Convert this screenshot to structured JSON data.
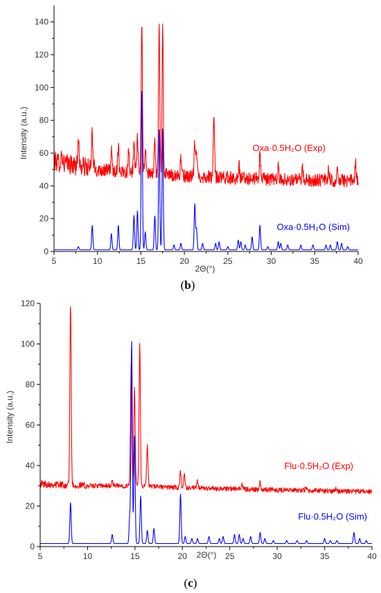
{
  "chart_data": [
    {
      "type": "line",
      "panel_label": "(b)",
      "panel_letter": "b",
      "xlabel": "2Θ(°)",
      "ylabel": "Intensity (a.u.)",
      "xlim": [
        5,
        40
      ],
      "ylim": [
        0,
        150
      ],
      "xticks": [
        5,
        10,
        15,
        20,
        25,
        30,
        35,
        40
      ],
      "yticks": [
        0,
        20,
        40,
        60,
        80,
        100,
        120,
        140
      ],
      "grid": false,
      "series": [
        {
          "name": "Oxa·0.5H₂O (Exp)",
          "color": "#ff0000",
          "baseline": [
            [
              5,
              55
            ],
            [
              10,
              50
            ],
            [
              20,
              46
            ],
            [
              30,
              44
            ],
            [
              40,
              43
            ]
          ],
          "noise": 5,
          "peaks": [
            [
              5.9,
              60
            ],
            [
              7.8,
              70
            ],
            [
              9.4,
              73
            ],
            [
              11.6,
              61
            ],
            [
              12.4,
              65
            ],
            [
              13.6,
              63
            ],
            [
              14.2,
              66
            ],
            [
              14.6,
              70
            ],
            [
              15.1,
              142
            ],
            [
              15.5,
              64
            ],
            [
              16.6,
              68
            ],
            [
              17.1,
              140
            ],
            [
              17.5,
              138
            ],
            [
              19.6,
              57
            ],
            [
              21.2,
              66
            ],
            [
              21.4,
              62
            ],
            [
              23.4,
              83
            ],
            [
              26.3,
              52
            ],
            [
              28.7,
              60
            ],
            [
              30.8,
              51
            ],
            [
              33.6,
              50
            ],
            [
              36.6,
              50
            ],
            [
              37.6,
              50
            ],
            [
              39.7,
              54
            ]
          ]
        },
        {
          "name": "Oxa·0.5H₂O (Sim)",
          "color": "#0000ff",
          "baseline": [
            [
              5,
              1
            ],
            [
              40,
              1
            ]
          ],
          "noise": 0,
          "peaks": [
            [
              7.8,
              3
            ],
            [
              9.4,
              16
            ],
            [
              11.6,
              11
            ],
            [
              12.4,
              16
            ],
            [
              14.2,
              22
            ],
            [
              14.6,
              25
            ],
            [
              15.1,
              100
            ],
            [
              15.5,
              12
            ],
            [
              16.6,
              22
            ],
            [
              17.1,
              75
            ],
            [
              17.5,
              75
            ],
            [
              18.8,
              4
            ],
            [
              19.6,
              5
            ],
            [
              21.2,
              29
            ],
            [
              21.4,
              14
            ],
            [
              22.1,
              5
            ],
            [
              23.6,
              5
            ],
            [
              24.0,
              6
            ],
            [
              25.0,
              3
            ],
            [
              26.2,
              7
            ],
            [
              26.5,
              6
            ],
            [
              27.0,
              4
            ],
            [
              27.8,
              9
            ],
            [
              28.7,
              16
            ],
            [
              29.6,
              3
            ],
            [
              30.8,
              6
            ],
            [
              31.1,
              5
            ],
            [
              31.9,
              4
            ],
            [
              33.4,
              4
            ],
            [
              34.8,
              4
            ],
            [
              36.3,
              4
            ],
            [
              36.8,
              4
            ],
            [
              37.6,
              6
            ],
            [
              38.1,
              5
            ],
            [
              38.8,
              3
            ]
          ]
        }
      ]
    },
    {
      "type": "line",
      "panel_label": "(c)",
      "panel_letter": "c",
      "xlabel": "2Θ(°)",
      "ylabel": "Intensity (a.u.)",
      "xlim": [
        5,
        40
      ],
      "ylim": [
        0,
        120
      ],
      "xticks": [
        5,
        10,
        15,
        20,
        25,
        30,
        35,
        40
      ],
      "yticks": [
        0,
        20,
        40,
        60,
        80,
        100,
        120
      ],
      "grid": false,
      "series": [
        {
          "name": "Flu·0.5H₂O (Exp)",
          "color": "#ff0000",
          "baseline": [
            [
              5,
              31
            ],
            [
              10,
              30
            ],
            [
              15,
              30
            ],
            [
              20,
              29
            ],
            [
              30,
              28
            ],
            [
              40,
              27
            ]
          ],
          "noise": 1.5,
          "peaks": [
            [
              8.2,
              120
            ],
            [
              12.6,
              32
            ],
            [
              14.6,
              92
            ],
            [
              14.95,
              78
            ],
            [
              15.5,
              100
            ],
            [
              16.3,
              50
            ],
            [
              19.8,
              37
            ],
            [
              20.2,
              36
            ],
            [
              21.6,
              32
            ],
            [
              26.3,
              31
            ],
            [
              28.2,
              32
            ],
            [
              33.0,
              29
            ],
            [
              36.2,
              29
            ]
          ]
        },
        {
          "name": "Flu·0.5H₂O (Sim)",
          "color": "#0000ff",
          "baseline": [
            [
              5,
              1.5
            ],
            [
              40,
              1.5
            ]
          ],
          "noise": 0,
          "peaks": [
            [
              8.2,
              22
            ],
            [
              12.6,
              6
            ],
            [
              14.45,
              15
            ],
            [
              14.65,
              102
            ],
            [
              14.95,
              55
            ],
            [
              15.6,
              25
            ],
            [
              16.3,
              8
            ],
            [
              17.0,
              9
            ],
            [
              19.8,
              26
            ],
            [
              20.3,
              5
            ],
            [
              21.0,
              4
            ],
            [
              21.6,
              4
            ],
            [
              22.8,
              5
            ],
            [
              23.9,
              4
            ],
            [
              24.3,
              5
            ],
            [
              25.5,
              6
            ],
            [
              26.0,
              6
            ],
            [
              26.4,
              4
            ],
            [
              27.2,
              5
            ],
            [
              28.2,
              7
            ],
            [
              28.7,
              4
            ],
            [
              29.6,
              3
            ],
            [
              31.0,
              3
            ],
            [
              32.1,
              3
            ],
            [
              33.1,
              3
            ],
            [
              35.0,
              4
            ],
            [
              35.6,
              3
            ],
            [
              36.3,
              3
            ],
            [
              38.1,
              7
            ],
            [
              38.7,
              4
            ],
            [
              39.4,
              3
            ]
          ]
        }
      ]
    }
  ]
}
